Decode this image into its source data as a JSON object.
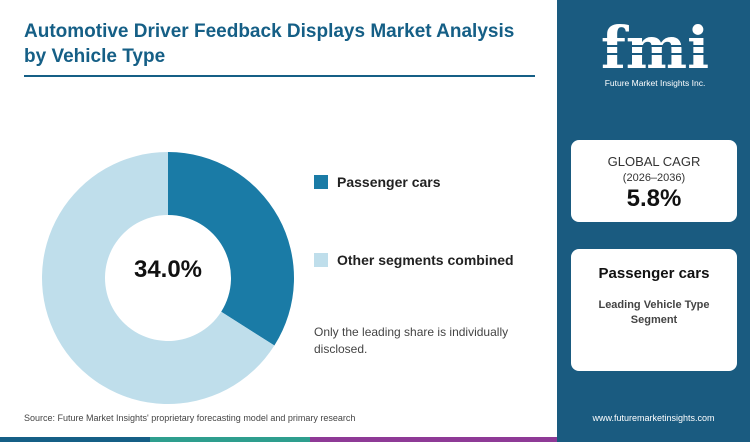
{
  "title": "Automotive Driver Feedback Displays Market Analysis by Vehicle Type",
  "center_label": "34.0%",
  "note": "Only the leading share is individually disclosed.",
  "source": "Source: Future Market Insights' proprietary forecasting model and primary research",
  "colors": {
    "brand": "#155f86",
    "sidebar": "#1a5b80",
    "primary_segment": "#1a7ba6",
    "other_segment": "#bfdeeb",
    "bottom_bar": [
      "#155f86",
      "#2e9e8e",
      "#8e3a96"
    ]
  },
  "chart_data": {
    "type": "pie",
    "style": "donut",
    "slices": [
      {
        "label": "Passenger cars",
        "value": 34.0,
        "color": "#1a7ba6"
      },
      {
        "label": "Other segments combined",
        "value": 66.0,
        "color": "#bfdeeb"
      }
    ],
    "legend": "right"
  },
  "sidebar": {
    "logo_text": "fmi",
    "logo_name": "Future Market Insights Inc.",
    "cagr": {
      "label": "GLOBAL CAGR",
      "period": "(2026–2036)",
      "value": "5.8%"
    },
    "segment": {
      "name": "Passenger cars",
      "description": "Leading Vehicle Type Segment"
    },
    "website": "www.futuremarketinsights.com"
  }
}
